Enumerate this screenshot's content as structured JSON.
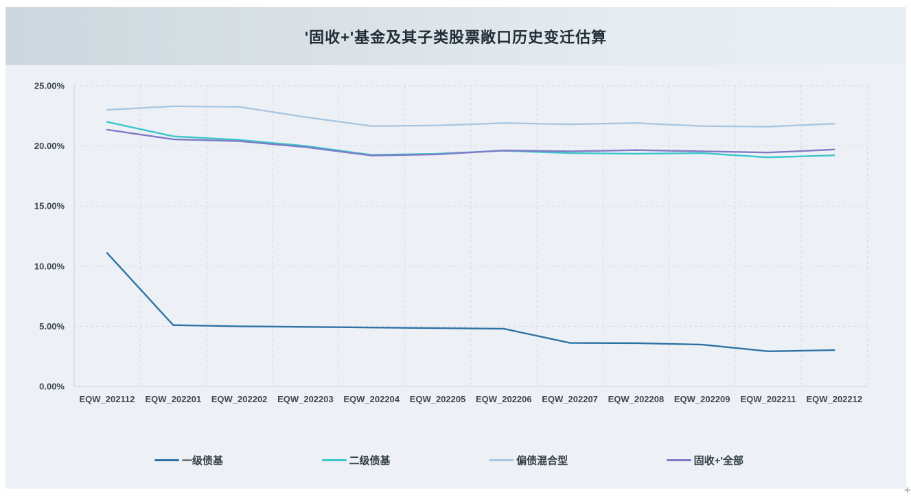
{
  "header": {
    "title": "'固收+'基金及其子类股票敞口历史变迁估算"
  },
  "chart_data": {
    "type": "line",
    "title": "'固收+'基金及其子类股票敞口历史变迁估算",
    "xlabel": "",
    "ylabel": "",
    "ylim": [
      0,
      25
    ],
    "grid": true,
    "grid_style": "dashed",
    "legend_position": "bottom",
    "x_labels": [
      "EQW_202112",
      "EQW_202201",
      "EQW_202202",
      "EQW_202203",
      "EQW_202204",
      "EQW_202205",
      "EQW_202206",
      "EQW_202207",
      "EQW_202208",
      "EQW_202209",
      "EQW_202211",
      "EQW_202212"
    ],
    "y_ticks": [
      {
        "label": "25.00%",
        "value": 25
      },
      {
        "label": "20.00%",
        "value": 20
      },
      {
        "label": "15.00%",
        "value": 15
      },
      {
        "label": "10.00%",
        "value": 10
      },
      {
        "label": "5.00%",
        "value": 5
      },
      {
        "label": "0.00%",
        "value": 0
      }
    ],
    "series": [
      {
        "id": "first-tier-bond-fund",
        "name": "一级债基",
        "color": "#2e72a3",
        "values": [
          11.1,
          5.1,
          5.0,
          4.95,
          4.9,
          4.85,
          4.8,
          3.62,
          3.6,
          3.48,
          2.92,
          3.02
        ]
      },
      {
        "id": "second-tier-bond-fund",
        "name": "二级债基",
        "color": "#3ac6cd",
        "values": [
          22.0,
          20.8,
          20.5,
          20.0,
          19.25,
          19.35,
          19.6,
          19.4,
          19.35,
          19.4,
          19.05,
          19.22
        ]
      },
      {
        "id": "bond-biased-hybrid",
        "name": "偏债混合型",
        "color": "#a9c6e0",
        "values": [
          23.0,
          23.3,
          23.25,
          22.4,
          21.65,
          21.7,
          21.9,
          21.8,
          21.9,
          21.65,
          21.6,
          21.85
        ]
      },
      {
        "id": "fixed-income-plus-all",
        "name": "固收+'全部",
        "color": "#7d7bc4",
        "values": [
          21.35,
          20.55,
          20.4,
          19.9,
          19.2,
          19.3,
          19.62,
          19.55,
          19.65,
          19.55,
          19.45,
          19.7
        ]
      }
    ]
  },
  "artifacts": {
    "corner_glyph": "✛"
  },
  "colors": {
    "card_background": "#edf1f6",
    "header_gradient_left": "#ccd8de",
    "header_gradient_right": "#e9eef2",
    "gridline": "#d5dce4",
    "axis_line": "#c9d4dc",
    "tick_label": "#3d474f",
    "title_text": "#1f2d36"
  }
}
